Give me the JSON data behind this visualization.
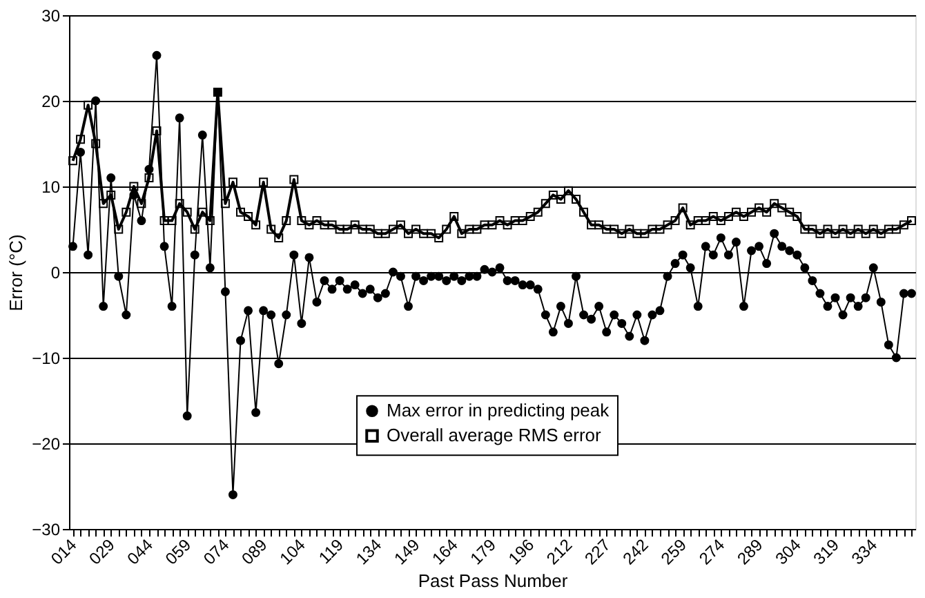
{
  "chart_data": {
    "type": "line",
    "xlabel": "Past Pass Number",
    "ylabel": "Error (°C)",
    "categories": [
      "014",
      null,
      null,
      null,
      null,
      "029",
      null,
      null,
      null,
      null,
      "044",
      null,
      null,
      null,
      null,
      "059",
      null,
      null,
      null,
      null,
      "074",
      null,
      null,
      null,
      null,
      "089",
      null,
      null,
      null,
      null,
      "104",
      null,
      null,
      null,
      null,
      "119",
      null,
      null,
      null,
      null,
      "134",
      null,
      null,
      null,
      null,
      "149",
      null,
      null,
      null,
      null,
      "164",
      null,
      null,
      null,
      null,
      "179",
      null,
      null,
      null,
      null,
      "196",
      null,
      null,
      null,
      null,
      "212",
      null,
      null,
      null,
      null,
      "227",
      null,
      null,
      null,
      null,
      "242",
      null,
      null,
      null,
      null,
      "259",
      null,
      null,
      null,
      null,
      "274",
      null,
      null,
      null,
      null,
      "289",
      null,
      null,
      null,
      null,
      "304",
      null,
      null,
      null,
      null,
      "319",
      null,
      null,
      null,
      null,
      "334",
      null,
      null,
      null,
      null,
      null
    ],
    "series": [
      {
        "name": "Max error in predicting peak",
        "color": "#000000",
        "marker": "circle",
        "values": [
          3,
          14,
          2,
          20,
          -4,
          11,
          -0.5,
          -5,
          9,
          6,
          12,
          25.3,
          3,
          -4,
          18,
          -16.8,
          2,
          16,
          0.5,
          21,
          -2.3,
          -26,
          -8,
          -4.5,
          -16.4,
          -4.5,
          -5,
          -10.7,
          -5,
          2,
          -6,
          1.7,
          -3.5,
          -1,
          -2,
          -1,
          -2,
          -1.5,
          -2.5,
          -2,
          -3,
          -2.5,
          0,
          -0.5,
          -4,
          -0.5,
          -1,
          -0.5,
          -0.5,
          -1,
          -0.5,
          -1,
          -0.5,
          -0.5,
          0.3,
          0,
          0.5,
          -1,
          -1,
          -1.5,
          -1.5,
          -2,
          -5,
          -7,
          -4,
          -6,
          -0.5,
          -5,
          -5.5,
          -4,
          -7,
          -5,
          -6,
          -7.5,
          -5,
          -8,
          -5,
          -4.5,
          -0.5,
          1,
          2,
          0.5,
          -4,
          3,
          2,
          4,
          2,
          3.5,
          -4,
          2.5,
          3,
          1,
          4.5,
          3,
          2.5,
          2,
          0.5,
          -1,
          -2.5,
          -4,
          -3,
          -5,
          -3,
          -4,
          -3,
          0.5,
          -3.5,
          -8.5,
          -10,
          -2.5,
          -2.5
        ]
      },
      {
        "name": "Overall average RMS error",
        "color": "#000000",
        "marker": "square",
        "values": [
          13,
          15.5,
          19.5,
          15,
          8,
          9,
          5,
          7,
          10,
          8,
          11,
          16.5,
          6,
          6,
          8,
          7,
          5,
          7,
          6,
          21,
          8,
          10.5,
          7,
          6.5,
          5.5,
          10.5,
          5,
          4,
          6,
          10.8,
          6,
          5.5,
          6,
          5.5,
          5.5,
          5,
          5,
          5.5,
          5,
          5,
          4.5,
          4.5,
          5,
          5.5,
          4.5,
          5,
          4.5,
          4.5,
          4,
          5,
          6.5,
          4.5,
          5,
          5,
          5.5,
          5.5,
          6,
          5.5,
          6,
          6,
          6.5,
          7,
          8,
          9,
          8.5,
          9.5,
          8.5,
          7,
          5.5,
          5.5,
          5,
          5,
          4.5,
          5,
          4.5,
          4.5,
          5,
          5,
          5.5,
          6,
          7.5,
          5.5,
          6,
          6,
          6.5,
          6,
          6.5,
          7,
          6.5,
          7,
          7.5,
          7,
          8,
          7.5,
          7,
          6.5,
          5,
          5,
          4.5,
          5,
          4.5,
          5,
          4.5,
          5,
          4.5,
          5,
          4.5,
          5,
          5,
          5.5,
          6
        ]
      }
    ],
    "ylim": [
      -30,
      30
    ],
    "yticks": [
      -30,
      -20,
      -10,
      0,
      10,
      20,
      30
    ],
    "grid": "y",
    "legend": "bottom"
  }
}
